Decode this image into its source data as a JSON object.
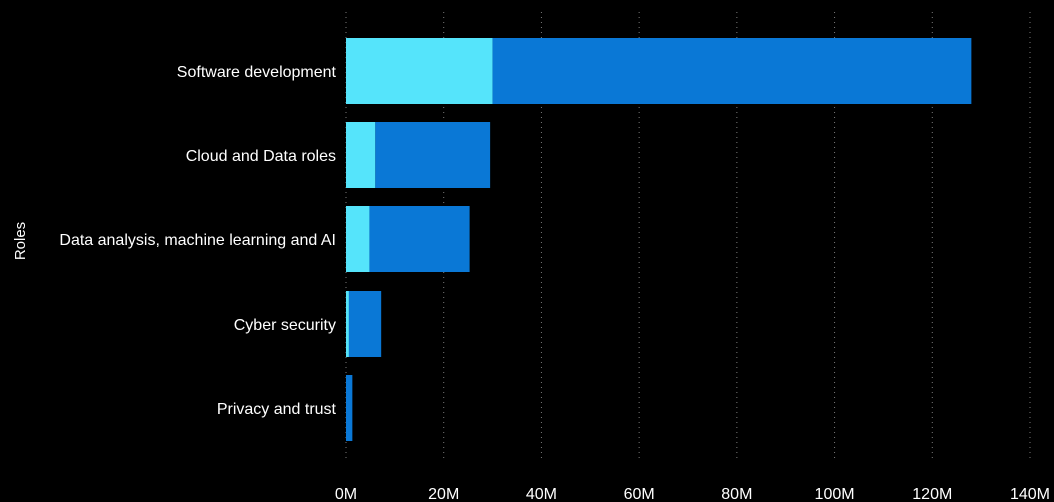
{
  "chart_data": {
    "type": "bar",
    "orientation": "horizontal",
    "stacked": true,
    "title": "",
    "xlabel": "",
    "ylabel": "Roles",
    "xlim": [
      0,
      140000000
    ],
    "x_ticks": [
      0,
      20000000,
      40000000,
      60000000,
      80000000,
      100000000,
      120000000,
      140000000
    ],
    "x_tick_labels": [
      "0M",
      "20M",
      "40M",
      "60M",
      "80M",
      "100M",
      "120M",
      "140M"
    ],
    "grid": "vertical-dotted",
    "legend": "none",
    "categories": [
      "Software development",
      "Cloud and Data roles",
      "Data analysis, machine learning and AI",
      "Cyber security",
      "Privacy and trust"
    ],
    "series": [
      {
        "color": "#55e4fb",
        "values": [
          30000000,
          6000000,
          4800000,
          600000,
          0
        ]
      },
      {
        "color": "#0a78d6",
        "values": [
          98000000,
          23500000,
          20500000,
          6600000,
          1300000
        ]
      }
    ]
  },
  "colors": {
    "background": "#000000",
    "text": "#ffffff",
    "grid": "#7a7a7a"
  }
}
